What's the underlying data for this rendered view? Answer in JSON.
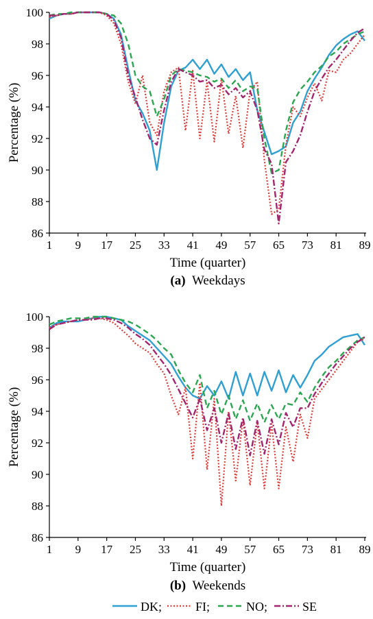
{
  "legend": {
    "items": [
      {
        "label": "DK;",
        "color": "#2e9fd3",
        "dash": "solid"
      },
      {
        "label": "FI;",
        "color": "#e03a36",
        "dash": "dotted"
      },
      {
        "label": "NO;",
        "color": "#2aa650",
        "dash": "dashed"
      },
      {
        "label": "SE",
        "color": "#a3246e",
        "dash": "dashdot"
      }
    ]
  },
  "chart_data": [
    {
      "type": "line",
      "panel_letter": "(a)",
      "caption": "Weekdays",
      "xlabel": "Time (quarter)",
      "ylabel": "Percentage (%)",
      "xlim": [
        1,
        89
      ],
      "ylim": [
        86,
        100
      ],
      "xticks": [
        1,
        9,
        17,
        25,
        33,
        41,
        49,
        57,
        65,
        73,
        81,
        89
      ],
      "yticks": [
        86,
        88,
        90,
        92,
        94,
        96,
        98,
        100
      ],
      "x": [
        1,
        3,
        5,
        7,
        9,
        11,
        13,
        15,
        17,
        19,
        21,
        23,
        25,
        27,
        29,
        31,
        33,
        35,
        37,
        39,
        41,
        43,
        45,
        47,
        49,
        51,
        53,
        55,
        57,
        59,
        61,
        63,
        65,
        67,
        69,
        71,
        73,
        75,
        77,
        79,
        81,
        83,
        85,
        87,
        89
      ],
      "series": [
        {
          "name": "DK",
          "color": "#2e9fd3",
          "dash": "solid",
          "values": [
            99.6,
            99.8,
            99.9,
            99.9,
            100,
            100,
            100,
            100,
            99.9,
            99.6,
            98.6,
            96.4,
            94.4,
            93.6,
            92.5,
            90.0,
            93.0,
            95.3,
            96.3,
            96.5,
            97.0,
            96.4,
            97.0,
            96.1,
            96.7,
            95.9,
            96.4,
            95.7,
            96.2,
            93.8,
            92.4,
            91.0,
            91.2,
            91.5,
            93.0,
            93.7,
            95.0,
            95.8,
            96.5,
            97.3,
            97.9,
            98.3,
            98.6,
            98.8,
            98.2
          ]
        },
        {
          "name": "FI",
          "color": "#e03a36",
          "dash": "dotted",
          "values": [
            99.7,
            99.8,
            99.9,
            99.9,
            100,
            100,
            100,
            100,
            99.8,
            99.3,
            98.0,
            95.6,
            94.2,
            96.0,
            93.0,
            92.2,
            95.0,
            96.2,
            96.5,
            92.5,
            96.3,
            92.0,
            95.6,
            91.8,
            95.8,
            92.3,
            94.7,
            91.4,
            95.0,
            95.6,
            90.6,
            87.2,
            87.5,
            91.6,
            94.0,
            93.4,
            94.6,
            95.5,
            94.4,
            96.3,
            96.2,
            97.0,
            97.4,
            98.0,
            98.6
          ]
        },
        {
          "name": "NO",
          "color": "#2aa650",
          "dash": "dashed",
          "values": [
            99.8,
            99.9,
            99.9,
            100,
            100,
            100,
            100,
            100,
            99.9,
            99.8,
            99.3,
            98.0,
            96.0,
            95.3,
            95.0,
            93.4,
            94.5,
            96.0,
            96.4,
            96.3,
            96.2,
            96.0,
            95.9,
            95.6,
            95.8,
            95.2,
            95.7,
            95.0,
            95.3,
            95.2,
            92.0,
            89.8,
            90.0,
            92.5,
            94.3,
            95.1,
            95.6,
            96.2,
            96.6,
            97.2,
            97.5,
            98.0,
            98.3,
            98.6,
            98.8
          ]
        },
        {
          "name": "SE",
          "color": "#a3246e",
          "dash": "dashdot",
          "values": [
            99.8,
            99.8,
            99.9,
            99.9,
            100,
            100,
            100,
            100,
            99.9,
            99.5,
            98.4,
            96.0,
            94.6,
            93.2,
            92.0,
            91.6,
            93.8,
            95.6,
            96.4,
            96.2,
            96.0,
            95.6,
            95.7,
            95.2,
            95.4,
            94.8,
            95.2,
            94.6,
            95.0,
            93.8,
            91.3,
            90.4,
            86.6,
            90.5,
            91.2,
            92.2,
            93.7,
            95.0,
            95.8,
            96.5,
            97.0,
            97.6,
            98.2,
            98.7,
            99.0
          ]
        }
      ]
    },
    {
      "type": "line",
      "panel_letter": "(b)",
      "caption": "Weekends",
      "xlabel": "Time (quarter)",
      "ylabel": "Percentage (%)",
      "xlim": [
        1,
        89
      ],
      "ylim": [
        86,
        100
      ],
      "xticks": [
        1,
        9,
        17,
        25,
        33,
        41,
        49,
        57,
        65,
        73,
        81,
        89
      ],
      "yticks": [
        86,
        88,
        90,
        92,
        94,
        96,
        98,
        100
      ],
      "x": [
        1,
        3,
        5,
        7,
        9,
        11,
        13,
        15,
        17,
        19,
        21,
        23,
        25,
        27,
        29,
        31,
        33,
        35,
        37,
        39,
        41,
        43,
        45,
        47,
        49,
        51,
        53,
        55,
        57,
        59,
        61,
        63,
        65,
        67,
        69,
        71,
        73,
        75,
        77,
        79,
        81,
        83,
        85,
        87,
        89
      ],
      "series": [
        {
          "name": "DK",
          "color": "#2e9fd3",
          "dash": "solid",
          "values": [
            99.3,
            99.6,
            99.7,
            99.7,
            99.7,
            99.8,
            99.9,
            100,
            100,
            99.9,
            99.8,
            99.4,
            99.1,
            98.8,
            98.5,
            98.0,
            97.5,
            97.0,
            96.2,
            95.5,
            95.0,
            94.8,
            95.6,
            95.0,
            95.9,
            94.8,
            96.5,
            95.0,
            96.4,
            95.0,
            96.5,
            95.3,
            96.6,
            95.2,
            96.3,
            95.5,
            96.3,
            97.2,
            97.6,
            98.1,
            98.4,
            98.7,
            98.8,
            98.9,
            98.2
          ]
        },
        {
          "name": "FI",
          "color": "#e03a36",
          "dash": "dotted",
          "values": [
            99.3,
            99.5,
            99.6,
            99.7,
            99.8,
            99.8,
            99.9,
            99.9,
            99.8,
            99.6,
            99.2,
            98.8,
            98.3,
            98.0,
            97.7,
            97.0,
            96.4,
            95.0,
            93.8,
            95.5,
            91.0,
            95.8,
            90.3,
            94.8,
            88.0,
            94.0,
            89.6,
            93.5,
            89.3,
            93.3,
            89.1,
            93.2,
            89.1,
            93.0,
            90.8,
            93.8,
            92.3,
            94.8,
            95.4,
            96.0,
            96.6,
            97.2,
            97.8,
            98.4,
            98.6
          ]
        },
        {
          "name": "NO",
          "color": "#2aa650",
          "dash": "dashed",
          "values": [
            99.5,
            99.7,
            99.8,
            99.9,
            99.9,
            99.9,
            100,
            100,
            100,
            99.9,
            99.8,
            99.7,
            99.5,
            99.2,
            98.9,
            98.5,
            98.0,
            97.6,
            96.6,
            95.8,
            95.2,
            96.3,
            94.2,
            95.3,
            93.8,
            95.0,
            93.5,
            94.7,
            93.4,
            94.5,
            93.3,
            94.4,
            93.5,
            94.5,
            94.4,
            95.2,
            94.6,
            95.5,
            96.2,
            96.8,
            97.2,
            97.7,
            98.1,
            98.5,
            98.7
          ]
        },
        {
          "name": "SE",
          "color": "#a3246e",
          "dash": "dashdot",
          "values": [
            99.2,
            99.5,
            99.6,
            99.7,
            99.8,
            99.8,
            99.8,
            99.9,
            99.9,
            99.8,
            99.6,
            99.3,
            98.9,
            98.6,
            98.2,
            97.6,
            97.0,
            96.3,
            95.4,
            94.5,
            93.6,
            94.8,
            92.8,
            94.2,
            92.0,
            93.9,
            91.6,
            93.6,
            91.2,
            93.4,
            91.3,
            93.5,
            91.9,
            93.9,
            93.0,
            94.2,
            94.2,
            95.1,
            95.8,
            96.4,
            97.0,
            97.5,
            98.0,
            98.4,
            98.7
          ]
        }
      ]
    }
  ]
}
